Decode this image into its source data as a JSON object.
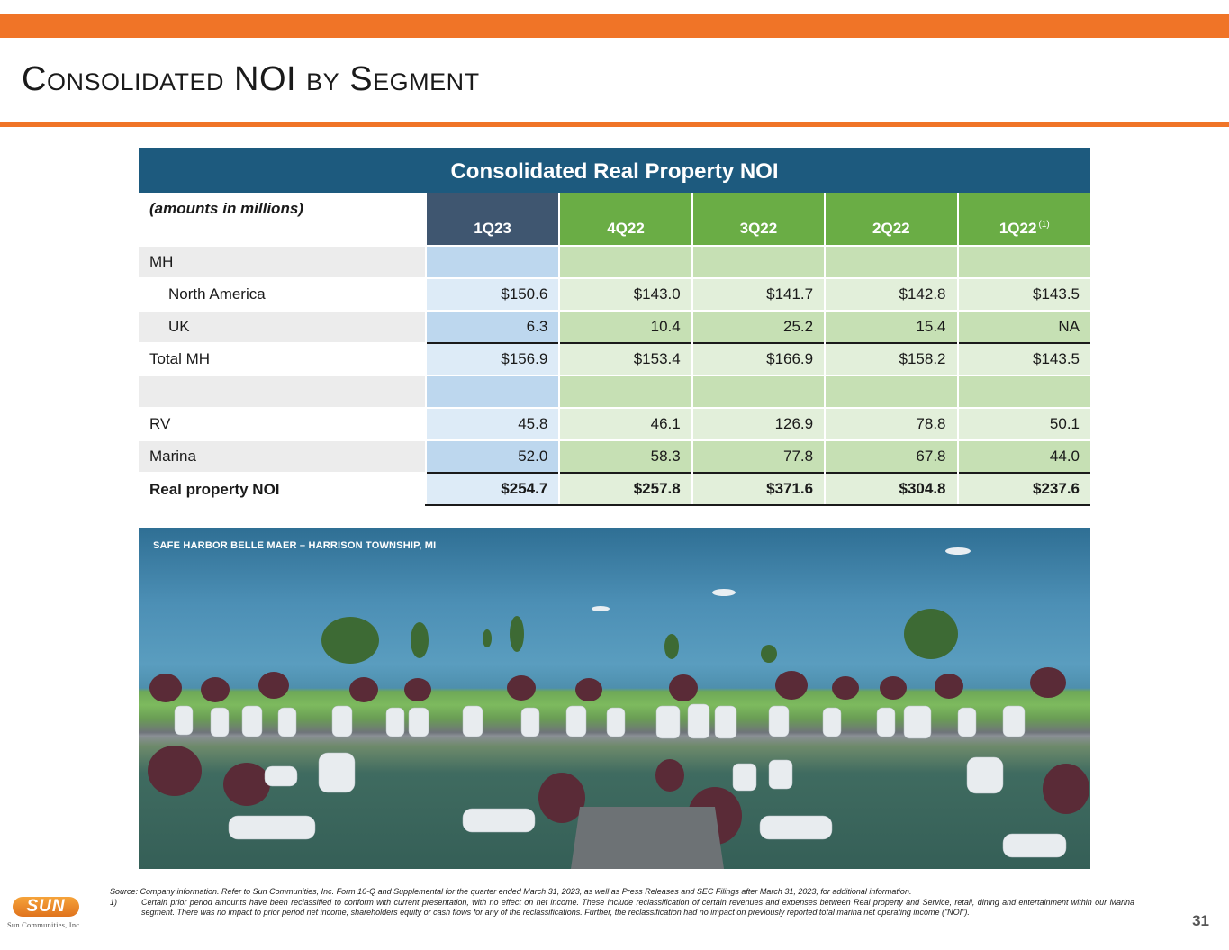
{
  "slide": {
    "title": "Consolidated NOI by Segment",
    "page_number": "31"
  },
  "table": {
    "title": "Consolidated Real Property NOI",
    "amounts_note": "(amounts in millions)",
    "columns": [
      "1Q23",
      "4Q22",
      "3Q22",
      "2Q22",
      "1Q22"
    ],
    "last_column_footnote": "(1)",
    "rows": [
      {
        "label": "MH",
        "values": [
          "",
          "",
          "",
          "",
          ""
        ]
      },
      {
        "label": "North America",
        "values": [
          "$150.6",
          "$143.0",
          "$141.7",
          "$142.8",
          "$143.5"
        ]
      },
      {
        "label": "UK",
        "values": [
          "6.3",
          "10.4",
          "25.2",
          "15.4",
          "NA"
        ]
      },
      {
        "label": "Total MH",
        "values": [
          "$156.9",
          "$153.4",
          "$166.9",
          "$158.2",
          "$143.5"
        ]
      },
      {
        "label": "",
        "values": [
          "",
          "",
          "",
          "",
          ""
        ]
      },
      {
        "label": "RV",
        "values": [
          "45.8",
          "46.1",
          "126.9",
          "78.8",
          "50.1"
        ]
      },
      {
        "label": "Marina",
        "values": [
          "52.0",
          "58.3",
          "77.8",
          "67.8",
          "44.0"
        ]
      },
      {
        "label": "Real property NOI",
        "values": [
          "$254.7",
          "$257.8",
          "$371.6",
          "$304.8",
          "$237.6"
        ]
      }
    ]
  },
  "photo": {
    "caption": "SAFE HARBOR BELLE MAER – HARRISON TOWNSHIP, MI"
  },
  "footnotes": {
    "source": "Source: Company information.  Refer to Sun Communities, Inc. Form 10-Q and Supplemental for the quarter ended March 31, 2023, as well as Press Releases and SEC Filings after March 31, 2023, for additional information.",
    "note_1_marker": "1)",
    "note_1": "Certain prior period amounts have been reclassified to conform with current presentation, with no effect on net income. These include reclassification of certain revenues and expenses between Real property and Service, retail, dining and entertainment within our Marina segment. There was no impact to prior period net income, shareholders equity or cash flows for any of the reclassifications. Further, the reclassification had no impact on previously reported total marina net operating income (\"NOI\")."
  },
  "logo": {
    "mark": "SUN",
    "name": "Sun Communities, Inc."
  },
  "colors": {
    "accent_orange": "#f07427",
    "table_title_blue": "#1d5a7e",
    "current_quarter_header": "#3f5670",
    "prior_quarter_header": "#6aad45"
  }
}
